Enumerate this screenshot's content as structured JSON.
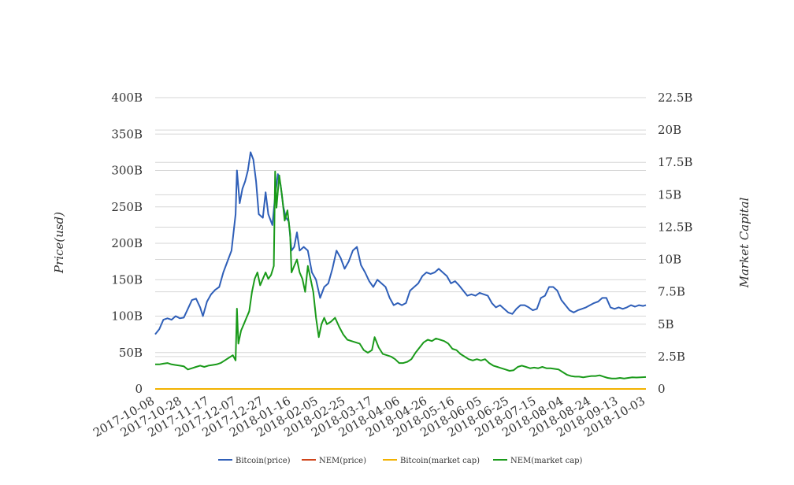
{
  "chart_data": {
    "type": "line",
    "y_left_label": "Price(usd)",
    "y_right_label": "Market Capital",
    "y_left_ticks": [
      "0",
      "50B",
      "100B",
      "150B",
      "200B",
      "250B",
      "300B",
      "350B",
      "400B"
    ],
    "y_right_ticks": [
      "0",
      "2.5B",
      "5B",
      "7.5B",
      "10B",
      "12.5B",
      "15B",
      "17.5B",
      "20B",
      "22.5B"
    ],
    "y_left_range": [
      0,
      400
    ],
    "y_right_range": [
      0,
      22.5
    ],
    "x_range": [
      "2017-10-08",
      "2018-10-03"
    ],
    "x_ticks": [
      "2017-10-08",
      "2017-10-28",
      "2017-11-17",
      "2017-12-07",
      "2017-12-27",
      "2018-01-16",
      "2018-02-05",
      "2018-02-25",
      "2018-03-17",
      "2018-04-06",
      "2018-04-26",
      "2018-05-16",
      "2018-06-05",
      "2018-06-25",
      "2018-07-15",
      "2018-08-04",
      "2018-08-24",
      "2018-09-13",
      "2018-10-03"
    ],
    "grid": true,
    "legend_position": "bottom",
    "series": [
      {
        "name": "Bitcoin(price)",
        "color": "#2f5fb8",
        "axis": "left",
        "points": [
          [
            "2017-10-08",
            75
          ],
          [
            "2017-10-11",
            82
          ],
          [
            "2017-10-14",
            95
          ],
          [
            "2017-10-17",
            97
          ],
          [
            "2017-10-20",
            95
          ],
          [
            "2017-10-23",
            100
          ],
          [
            "2017-10-26",
            97
          ],
          [
            "2017-10-29",
            98
          ],
          [
            "2017-11-01",
            110
          ],
          [
            "2017-11-04",
            122
          ],
          [
            "2017-11-07",
            124
          ],
          [
            "2017-11-10",
            112
          ],
          [
            "2017-11-12",
            100
          ],
          [
            "2017-11-15",
            120
          ],
          [
            "2017-11-18",
            130
          ],
          [
            "2017-11-21",
            136
          ],
          [
            "2017-11-24",
            140
          ],
          [
            "2017-11-27",
            160
          ],
          [
            "2017-11-30",
            175
          ],
          [
            "2017-12-03",
            190
          ],
          [
            "2017-12-06",
            240
          ],
          [
            "2017-12-07",
            300
          ],
          [
            "2017-12-09",
            255
          ],
          [
            "2017-12-11",
            275
          ],
          [
            "2017-12-13",
            285
          ],
          [
            "2017-12-15",
            300
          ],
          [
            "2017-12-17",
            325
          ],
          [
            "2017-12-19",
            315
          ],
          [
            "2017-12-21",
            285
          ],
          [
            "2017-12-23",
            240
          ],
          [
            "2017-12-26",
            235
          ],
          [
            "2017-12-28",
            270
          ],
          [
            "2017-12-30",
            240
          ],
          [
            "2018-01-02",
            225
          ],
          [
            "2018-01-04",
            265
          ],
          [
            "2018-01-06",
            295
          ],
          [
            "2018-01-08",
            280
          ],
          [
            "2018-01-10",
            250
          ],
          [
            "2018-01-12",
            235
          ],
          [
            "2018-01-14",
            230
          ],
          [
            "2018-01-16",
            190
          ],
          [
            "2018-01-18",
            195
          ],
          [
            "2018-01-20",
            215
          ],
          [
            "2018-01-22",
            190
          ],
          [
            "2018-01-25",
            195
          ],
          [
            "2018-01-28",
            190
          ],
          [
            "2018-01-31",
            160
          ],
          [
            "2018-02-03",
            150
          ],
          [
            "2018-02-06",
            125
          ],
          [
            "2018-02-09",
            140
          ],
          [
            "2018-02-12",
            145
          ],
          [
            "2018-02-15",
            165
          ],
          [
            "2018-02-18",
            190
          ],
          [
            "2018-02-21",
            180
          ],
          [
            "2018-02-24",
            165
          ],
          [
            "2018-02-27",
            175
          ],
          [
            "2018-03-02",
            190
          ],
          [
            "2018-03-05",
            195
          ],
          [
            "2018-03-08",
            170
          ],
          [
            "2018-03-11",
            160
          ],
          [
            "2018-03-14",
            148
          ],
          [
            "2018-03-17",
            140
          ],
          [
            "2018-03-20",
            150
          ],
          [
            "2018-03-23",
            145
          ],
          [
            "2018-03-26",
            140
          ],
          [
            "2018-03-29",
            125
          ],
          [
            "2018-04-01",
            115
          ],
          [
            "2018-04-04",
            118
          ],
          [
            "2018-04-07",
            115
          ],
          [
            "2018-04-10",
            118
          ],
          [
            "2018-04-13",
            135
          ],
          [
            "2018-04-16",
            140
          ],
          [
            "2018-04-19",
            145
          ],
          [
            "2018-04-22",
            155
          ],
          [
            "2018-04-25",
            160
          ],
          [
            "2018-04-28",
            158
          ],
          [
            "2018-05-01",
            160
          ],
          [
            "2018-05-04",
            165
          ],
          [
            "2018-05-07",
            160
          ],
          [
            "2018-05-10",
            155
          ],
          [
            "2018-05-13",
            145
          ],
          [
            "2018-05-16",
            148
          ],
          [
            "2018-05-19",
            142
          ],
          [
            "2018-05-22",
            135
          ],
          [
            "2018-05-25",
            128
          ],
          [
            "2018-05-28",
            130
          ],
          [
            "2018-05-31",
            128
          ],
          [
            "2018-06-03",
            132
          ],
          [
            "2018-06-06",
            130
          ],
          [
            "2018-06-09",
            128
          ],
          [
            "2018-06-12",
            118
          ],
          [
            "2018-06-15",
            112
          ],
          [
            "2018-06-18",
            115
          ],
          [
            "2018-06-21",
            110
          ],
          [
            "2018-06-24",
            105
          ],
          [
            "2018-06-27",
            103
          ],
          [
            "2018-06-30",
            110
          ],
          [
            "2018-07-03",
            115
          ],
          [
            "2018-07-06",
            115
          ],
          [
            "2018-07-09",
            112
          ],
          [
            "2018-07-12",
            108
          ],
          [
            "2018-07-15",
            110
          ],
          [
            "2018-07-18",
            125
          ],
          [
            "2018-07-21",
            128
          ],
          [
            "2018-07-24",
            140
          ],
          [
            "2018-07-27",
            140
          ],
          [
            "2018-07-30",
            135
          ],
          [
            "2018-08-02",
            122
          ],
          [
            "2018-08-05",
            115
          ],
          [
            "2018-08-08",
            108
          ],
          [
            "2018-08-11",
            105
          ],
          [
            "2018-08-14",
            108
          ],
          [
            "2018-08-17",
            110
          ],
          [
            "2018-08-20",
            112
          ],
          [
            "2018-08-23",
            115
          ],
          [
            "2018-08-26",
            118
          ],
          [
            "2018-08-29",
            120
          ],
          [
            "2018-09-01",
            125
          ],
          [
            "2018-09-04",
            125
          ],
          [
            "2018-09-07",
            112
          ],
          [
            "2018-09-10",
            110
          ],
          [
            "2018-09-13",
            112
          ],
          [
            "2018-09-16",
            110
          ],
          [
            "2018-09-19",
            112
          ],
          [
            "2018-09-22",
            115
          ],
          [
            "2018-09-25",
            113
          ],
          [
            "2018-09-28",
            115
          ],
          [
            "2018-10-01",
            114
          ],
          [
            "2018-10-03",
            115
          ]
        ]
      },
      {
        "name": "NEM(price)",
        "color": "#d0451b",
        "axis": "left",
        "points": [
          [
            "2017-10-08",
            0
          ],
          [
            "2018-10-03",
            0
          ]
        ]
      },
      {
        "name": "Bitcoin(market cap)",
        "color": "#f2b200",
        "axis": "right",
        "points": [
          [
            "2017-10-08",
            0
          ],
          [
            "2018-10-03",
            0
          ]
        ]
      },
      {
        "name": "NEM(market cap)",
        "color": "#1a9a1a",
        "axis": "right",
        "points": [
          [
            "2017-10-08",
            1.9
          ],
          [
            "2017-10-11",
            1.9
          ],
          [
            "2017-10-14",
            1.95
          ],
          [
            "2017-10-17",
            2.0
          ],
          [
            "2017-10-20",
            1.9
          ],
          [
            "2017-10-23",
            1.85
          ],
          [
            "2017-10-26",
            1.8
          ],
          [
            "2017-10-29",
            1.75
          ],
          [
            "2017-11-01",
            1.5
          ],
          [
            "2017-11-04",
            1.6
          ],
          [
            "2017-11-07",
            1.7
          ],
          [
            "2017-11-10",
            1.8
          ],
          [
            "2017-11-13",
            1.7
          ],
          [
            "2017-11-16",
            1.8
          ],
          [
            "2017-11-19",
            1.85
          ],
          [
            "2017-11-22",
            1.9
          ],
          [
            "2017-11-25",
            2.0
          ],
          [
            "2017-11-28",
            2.2
          ],
          [
            "2017-12-01",
            2.4
          ],
          [
            "2017-12-04",
            2.6
          ],
          [
            "2017-12-06",
            2.2
          ],
          [
            "2017-12-07",
            6.2
          ],
          [
            "2017-12-08",
            3.5
          ],
          [
            "2017-12-10",
            4.5
          ],
          [
            "2017-12-12",
            5.0
          ],
          [
            "2017-12-14",
            5.5
          ],
          [
            "2017-12-16",
            6.0
          ],
          [
            "2017-12-18",
            7.5
          ],
          [
            "2017-12-20",
            8.5
          ],
          [
            "2017-12-22",
            9.0
          ],
          [
            "2017-12-24",
            8.0
          ],
          [
            "2017-12-26",
            8.5
          ],
          [
            "2017-12-28",
            9.0
          ],
          [
            "2017-12-30",
            8.5
          ],
          [
            "2018-01-01",
            8.8
          ],
          [
            "2018-01-03",
            9.5
          ],
          [
            "2018-01-04",
            16.8
          ],
          [
            "2018-01-05",
            14.0
          ],
          [
            "2018-01-07",
            16.5
          ],
          [
            "2018-01-09",
            15.0
          ],
          [
            "2018-01-11",
            13.0
          ],
          [
            "2018-01-13",
            13.8
          ],
          [
            "2018-01-15",
            12.0
          ],
          [
            "2018-01-16",
            9.0
          ],
          [
            "2018-01-18",
            9.5
          ],
          [
            "2018-01-20",
            10.0
          ],
          [
            "2018-01-22",
            9.0
          ],
          [
            "2018-01-24",
            8.5
          ],
          [
            "2018-01-26",
            7.5
          ],
          [
            "2018-01-28",
            9.5
          ],
          [
            "2018-01-30",
            8.5
          ],
          [
            "2018-02-01",
            7.5
          ],
          [
            "2018-02-03",
            5.5
          ],
          [
            "2018-02-05",
            4.0
          ],
          [
            "2018-02-07",
            5.0
          ],
          [
            "2018-02-09",
            5.5
          ],
          [
            "2018-02-11",
            5.0
          ],
          [
            "2018-02-14",
            5.2
          ],
          [
            "2018-02-17",
            5.5
          ],
          [
            "2018-02-20",
            4.8
          ],
          [
            "2018-02-23",
            4.2
          ],
          [
            "2018-02-26",
            3.8
          ],
          [
            "2018-03-01",
            3.7
          ],
          [
            "2018-03-04",
            3.6
          ],
          [
            "2018-03-07",
            3.5
          ],
          [
            "2018-03-10",
            3.0
          ],
          [
            "2018-03-13",
            2.8
          ],
          [
            "2018-03-16",
            3.0
          ],
          [
            "2018-03-18",
            4.0
          ],
          [
            "2018-03-21",
            3.2
          ],
          [
            "2018-03-24",
            2.7
          ],
          [
            "2018-03-27",
            2.6
          ],
          [
            "2018-03-30",
            2.5
          ],
          [
            "2018-04-02",
            2.3
          ],
          [
            "2018-04-05",
            2.0
          ],
          [
            "2018-04-08",
            2.0
          ],
          [
            "2018-04-11",
            2.1
          ],
          [
            "2018-04-14",
            2.3
          ],
          [
            "2018-04-17",
            2.8
          ],
          [
            "2018-04-20",
            3.2
          ],
          [
            "2018-04-23",
            3.6
          ],
          [
            "2018-04-26",
            3.8
          ],
          [
            "2018-04-29",
            3.7
          ],
          [
            "2018-05-02",
            3.9
          ],
          [
            "2018-05-05",
            3.8
          ],
          [
            "2018-05-08",
            3.7
          ],
          [
            "2018-05-11",
            3.5
          ],
          [
            "2018-05-14",
            3.1
          ],
          [
            "2018-05-17",
            3.0
          ],
          [
            "2018-05-20",
            2.7
          ],
          [
            "2018-05-23",
            2.5
          ],
          [
            "2018-05-26",
            2.3
          ],
          [
            "2018-05-29",
            2.2
          ],
          [
            "2018-06-01",
            2.3
          ],
          [
            "2018-06-04",
            2.2
          ],
          [
            "2018-06-07",
            2.3
          ],
          [
            "2018-06-10",
            2.0
          ],
          [
            "2018-06-13",
            1.8
          ],
          [
            "2018-06-16",
            1.7
          ],
          [
            "2018-06-19",
            1.6
          ],
          [
            "2018-06-22",
            1.5
          ],
          [
            "2018-06-25",
            1.4
          ],
          [
            "2018-06-28",
            1.45
          ],
          [
            "2018-07-01",
            1.7
          ],
          [
            "2018-07-04",
            1.8
          ],
          [
            "2018-07-07",
            1.7
          ],
          [
            "2018-07-10",
            1.6
          ],
          [
            "2018-07-13",
            1.65
          ],
          [
            "2018-07-16",
            1.6
          ],
          [
            "2018-07-19",
            1.7
          ],
          [
            "2018-07-22",
            1.6
          ],
          [
            "2018-07-25",
            1.6
          ],
          [
            "2018-07-28",
            1.55
          ],
          [
            "2018-07-31",
            1.5
          ],
          [
            "2018-08-03",
            1.3
          ],
          [
            "2018-08-06",
            1.1
          ],
          [
            "2018-08-09",
            1.0
          ],
          [
            "2018-08-12",
            0.95
          ],
          [
            "2018-08-15",
            0.95
          ],
          [
            "2018-08-18",
            0.9
          ],
          [
            "2018-08-21",
            0.95
          ],
          [
            "2018-08-24",
            1.0
          ],
          [
            "2018-08-27",
            1.0
          ],
          [
            "2018-08-30",
            1.05
          ],
          [
            "2018-09-02",
            0.95
          ],
          [
            "2018-09-05",
            0.85
          ],
          [
            "2018-09-08",
            0.8
          ],
          [
            "2018-09-11",
            0.8
          ],
          [
            "2018-09-14",
            0.85
          ],
          [
            "2018-09-17",
            0.8
          ],
          [
            "2018-09-20",
            0.85
          ],
          [
            "2018-09-23",
            0.9
          ],
          [
            "2018-09-26",
            0.88
          ],
          [
            "2018-09-29",
            0.9
          ],
          [
            "2018-10-03",
            0.92
          ]
        ]
      }
    ]
  }
}
